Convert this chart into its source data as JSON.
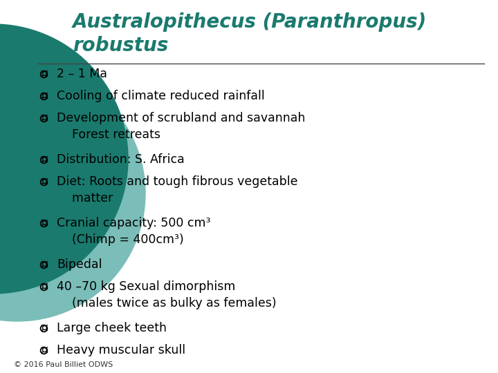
{
  "title_line1": "Australopithecus (Paranthropus)",
  "title_line2": "robustus",
  "title_color": "#1a7a6e",
  "bg_color": "#ffffff",
  "bullet_color": "#000000",
  "circle_dark": "#1a7a6e",
  "circle_light": "#7bbdb8",
  "bullet_items": [
    "2 – 1 Ma",
    "Cooling of climate reduced rainfall",
    "Development of scrubland and savannah\n    Forest retreats",
    "Distribution: S. Africa",
    "Diet: Roots and tough fibrous vegetable\n    matter",
    "Cranial capacity: 500 cm³\n    (Chimp = 400cm³)",
    "Bipedal",
    "40 –70 kg Sexual dimorphism\n    (males twice as bulky as females)",
    "Large cheek teeth",
    "Heavy muscular skull"
  ],
  "footer": "© 2016 Paul Billiet ODWS",
  "title_fontsize": 20,
  "bullet_fontsize": 12.5,
  "footer_fontsize": 8
}
